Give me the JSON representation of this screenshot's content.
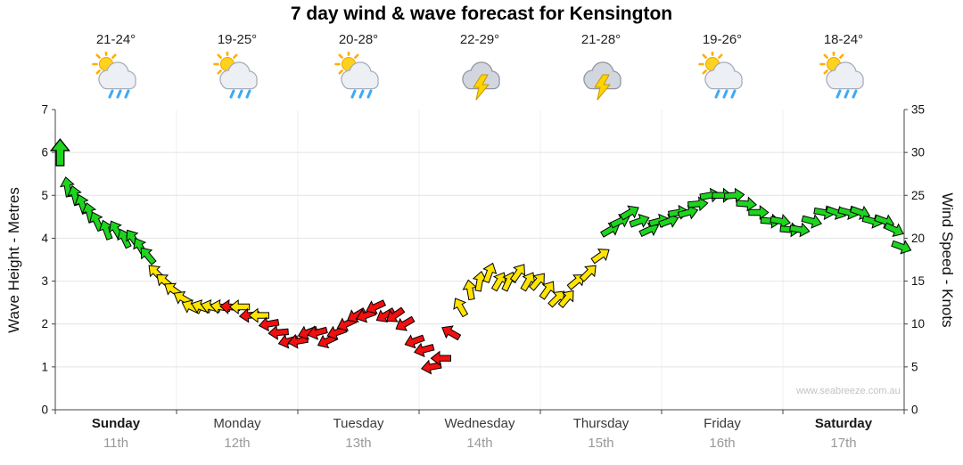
{
  "title": "7 day wind & wave forecast for Kensington",
  "watermark": "www.seabreeze.com.au",
  "days": [
    {
      "name": "Sunday",
      "date": "11th",
      "temp": "21-24°",
      "icon": "sun_showers"
    },
    {
      "name": "Monday",
      "date": "12th",
      "temp": "19-25°",
      "icon": "sun_showers"
    },
    {
      "name": "Tuesday",
      "date": "13th",
      "temp": "20-28°",
      "icon": "sun_showers"
    },
    {
      "name": "Wednesday",
      "date": "14th",
      "temp": "22-29°",
      "icon": "thunderstorm"
    },
    {
      "name": "Thursday",
      "date": "15th",
      "temp": "21-28°",
      "icon": "thunderstorm"
    },
    {
      "name": "Friday",
      "date": "16th",
      "temp": "19-26°",
      "icon": "sun_showers"
    },
    {
      "name": "Saturday",
      "date": "17th",
      "temp": "18-24°",
      "icon": "sun_showers"
    }
  ],
  "chart_data": {
    "type": "scatter",
    "title": "7 day wind & wave forecast for Kensington",
    "x_axis": {
      "unit": "days",
      "categories": [
        "Sunday 11th",
        "Monday 12th",
        "Tuesday 13th",
        "Wednesday 14th",
        "Thursday 15th",
        "Friday 16th",
        "Saturday 17th"
      ]
    },
    "left_axis": {
      "label": "Wave Height - Metres",
      "min": 0,
      "max": 7,
      "ticks": [
        0,
        1,
        2,
        3,
        4,
        5,
        6,
        7
      ]
    },
    "right_axis": {
      "label": "Wind Speed - Knots",
      "min": 0,
      "max": 35,
      "ticks": [
        0,
        5,
        10,
        15,
        20,
        25,
        30,
        35
      ]
    },
    "color_legend": {
      "g": "green (fresh wind)",
      "y": "yellow (moderate wind)",
      "r": "red (light wind)"
    },
    "point_format": [
      "day_x",
      "wind_knots",
      "direction_deg",
      "color"
    ],
    "points": [
      [
        0.04,
        30,
        0,
        "g"
      ],
      [
        0.1,
        26,
        350,
        "g"
      ],
      [
        0.16,
        25,
        345,
        "g"
      ],
      [
        0.22,
        24,
        340,
        "g"
      ],
      [
        0.28,
        23,
        345,
        "g"
      ],
      [
        0.34,
        22,
        335,
        "g"
      ],
      [
        0.42,
        21,
        340,
        "g"
      ],
      [
        0.5,
        21,
        330,
        "g"
      ],
      [
        0.57,
        20,
        335,
        "g"
      ],
      [
        0.64,
        20,
        325,
        "g"
      ],
      [
        0.7,
        19,
        330,
        "g"
      ],
      [
        0.76,
        18,
        320,
        "g"
      ],
      [
        0.83,
        16,
        315,
        "y"
      ],
      [
        0.9,
        15,
        310,
        "y"
      ],
      [
        0.97,
        14,
        305,
        "y"
      ],
      [
        1.05,
        13,
        300,
        "y"
      ],
      [
        1.12,
        12,
        295,
        "y"
      ],
      [
        1.2,
        12,
        290,
        "y"
      ],
      [
        1.28,
        12,
        285,
        "y"
      ],
      [
        1.36,
        12,
        280,
        "y"
      ],
      [
        1.44,
        12,
        275,
        "r"
      ],
      [
        1.52,
        12,
        270,
        "y"
      ],
      [
        1.6,
        11,
        265,
        "r"
      ],
      [
        1.68,
        11,
        270,
        "y"
      ],
      [
        1.76,
        10,
        260,
        "r"
      ],
      [
        1.84,
        9,
        265,
        "r"
      ],
      [
        1.92,
        8,
        255,
        "r"
      ],
      [
        2.0,
        8,
        260,
        "r"
      ],
      [
        2.08,
        9,
        250,
        "r"
      ],
      [
        2.16,
        9,
        255,
        "r"
      ],
      [
        2.24,
        8,
        245,
        "r"
      ],
      [
        2.32,
        9,
        250,
        "r"
      ],
      [
        2.4,
        10,
        245,
        "r"
      ],
      [
        2.48,
        11,
        240,
        "r"
      ],
      [
        2.56,
        11,
        250,
        "r"
      ],
      [
        2.64,
        12,
        245,
        "r"
      ],
      [
        2.72,
        11,
        240,
        "r"
      ],
      [
        2.8,
        11,
        235,
        "r"
      ],
      [
        2.88,
        10,
        240,
        "r"
      ],
      [
        2.96,
        8,
        250,
        "r"
      ],
      [
        3.04,
        7,
        255,
        "r"
      ],
      [
        3.1,
        5,
        260,
        "r"
      ],
      [
        3.18,
        6,
        270,
        "r"
      ],
      [
        3.26,
        9,
        300,
        "r"
      ],
      [
        3.34,
        12,
        330,
        "y"
      ],
      [
        3.42,
        14,
        350,
        "y"
      ],
      [
        3.5,
        15,
        10,
        "y"
      ],
      [
        3.58,
        16,
        20,
        "y"
      ],
      [
        3.66,
        15,
        30,
        "y"
      ],
      [
        3.74,
        15,
        25,
        "y"
      ],
      [
        3.82,
        16,
        35,
        "y"
      ],
      [
        3.9,
        15,
        30,
        "y"
      ],
      [
        3.98,
        15,
        40,
        "y"
      ],
      [
        4.06,
        14,
        35,
        "y"
      ],
      [
        4.14,
        13,
        45,
        "y"
      ],
      [
        4.22,
        13,
        40,
        "y"
      ],
      [
        4.3,
        15,
        50,
        "y"
      ],
      [
        4.4,
        16,
        45,
        "y"
      ],
      [
        4.5,
        18,
        55,
        "y"
      ],
      [
        4.58,
        21,
        60,
        "g"
      ],
      [
        4.66,
        22,
        65,
        "g"
      ],
      [
        4.74,
        23,
        60,
        "g"
      ],
      [
        4.82,
        22,
        70,
        "g"
      ],
      [
        4.9,
        21,
        65,
        "g"
      ],
      [
        4.98,
        22,
        75,
        "g"
      ],
      [
        5.06,
        22,
        70,
        "g"
      ],
      [
        5.14,
        23,
        80,
        "g"
      ],
      [
        5.22,
        23,
        75,
        "g"
      ],
      [
        5.3,
        24,
        85,
        "g"
      ],
      [
        5.4,
        25,
        80,
        "g"
      ],
      [
        5.5,
        25,
        90,
        "g"
      ],
      [
        5.6,
        25,
        85,
        "g"
      ],
      [
        5.7,
        24,
        95,
        "g"
      ],
      [
        5.8,
        23,
        90,
        "g"
      ],
      [
        5.9,
        22,
        95,
        "g"
      ],
      [
        5.98,
        22,
        100,
        "g"
      ],
      [
        6.06,
        21,
        95,
        "g"
      ],
      [
        6.14,
        21,
        100,
        "g"
      ],
      [
        6.24,
        22,
        105,
        "g"
      ],
      [
        6.34,
        23,
        100,
        "g"
      ],
      [
        6.44,
        23,
        110,
        "g"
      ],
      [
        6.54,
        23,
        105,
        "g"
      ],
      [
        6.64,
        23,
        110,
        "g"
      ],
      [
        6.74,
        22,
        105,
        "g"
      ],
      [
        6.84,
        22,
        110,
        "g"
      ],
      [
        6.92,
        21,
        115,
        "g"
      ],
      [
        6.98,
        19,
        110,
        "g"
      ]
    ]
  },
  "colors": {
    "g": "#1fd41f",
    "y": "#ffe400",
    "r": "#f01010",
    "grid": "#e4e4e4",
    "axis": "#444444"
  }
}
